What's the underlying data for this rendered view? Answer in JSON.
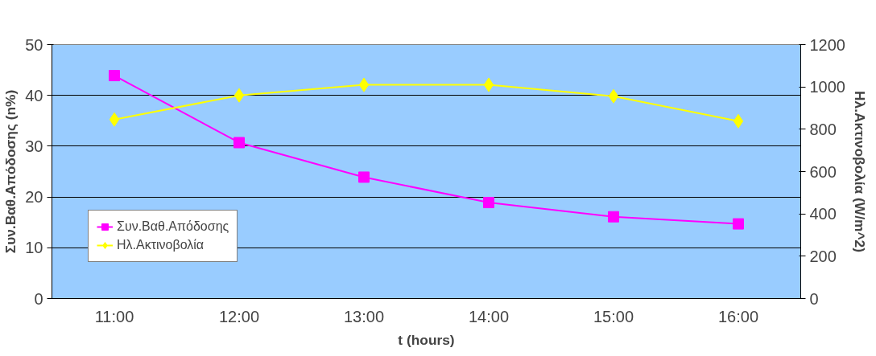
{
  "chart_data": {
    "type": "line",
    "xlabel": "t (hours)",
    "ylabel": "Συν.Βαθ.Απόδοσης (n%)",
    "y2label": "Ηλ.Ακτινοβολία (W/m^2)",
    "categories": [
      "11:00",
      "12:00",
      "13:00",
      "14:00",
      "15:00",
      "16:00"
    ],
    "series": [
      {
        "name": "Συν.Βαθ.Απόδοσης",
        "color": "#ff00ff",
        "marker": "square",
        "values": [
          43.9,
          30.7,
          23.9,
          18.9,
          16.1,
          14.7
        ]
      },
      {
        "name": "Ηλ.Ακτινοβολία",
        "color": "#ffff00",
        "marker": "diamond",
        "axis": "y2",
        "values": [
          846,
          960,
          1010,
          1010,
          956,
          838
        ]
      }
    ],
    "ylim": [
      0,
      50
    ],
    "yticks": [
      0,
      10,
      20,
      30,
      40,
      50
    ],
    "y2lim": [
      0,
      1200
    ],
    "y2ticks": [
      0,
      200,
      400,
      600,
      800,
      1000,
      1200
    ],
    "grid": "y",
    "legend": "bottom left"
  }
}
